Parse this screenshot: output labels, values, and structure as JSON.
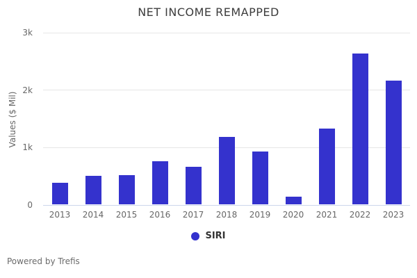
{
  "chart_data": {
    "type": "bar",
    "title": "NET INCOME REMAPPED",
    "xlabel": "",
    "ylabel": "Values ($ Mil)",
    "categories": [
      "2013",
      "2014",
      "2015",
      "2016",
      "2017",
      "2018",
      "2019",
      "2020",
      "2021",
      "2022",
      "2023"
    ],
    "series": [
      {
        "name": "SIRI",
        "color": "#3432cd",
        "values": [
          377,
          493,
          510,
          746,
          648,
          1176,
          914,
          131,
          1314,
          2630,
          2150
        ]
      }
    ],
    "ylim": [
      0,
      3000
    ],
    "yticks": [
      {
        "value": 0,
        "label": "0"
      },
      {
        "value": 1000,
        "label": "1k"
      },
      {
        "value": 2000,
        "label": "2k"
      },
      {
        "value": 3000,
        "label": "3k"
      }
    ],
    "grid": true,
    "legend_position": "bottom"
  },
  "legend": {
    "items": [
      {
        "label": "SIRI",
        "color": "#3432cd"
      }
    ]
  },
  "footer": {
    "text": "Powered by Trefis"
  },
  "colors": {
    "bar": "#3432cd",
    "gridline": "#e6e6e6",
    "axisline": "#ccd6eb",
    "title_text": "#3c3c3c",
    "tick_text": "#666666"
  }
}
